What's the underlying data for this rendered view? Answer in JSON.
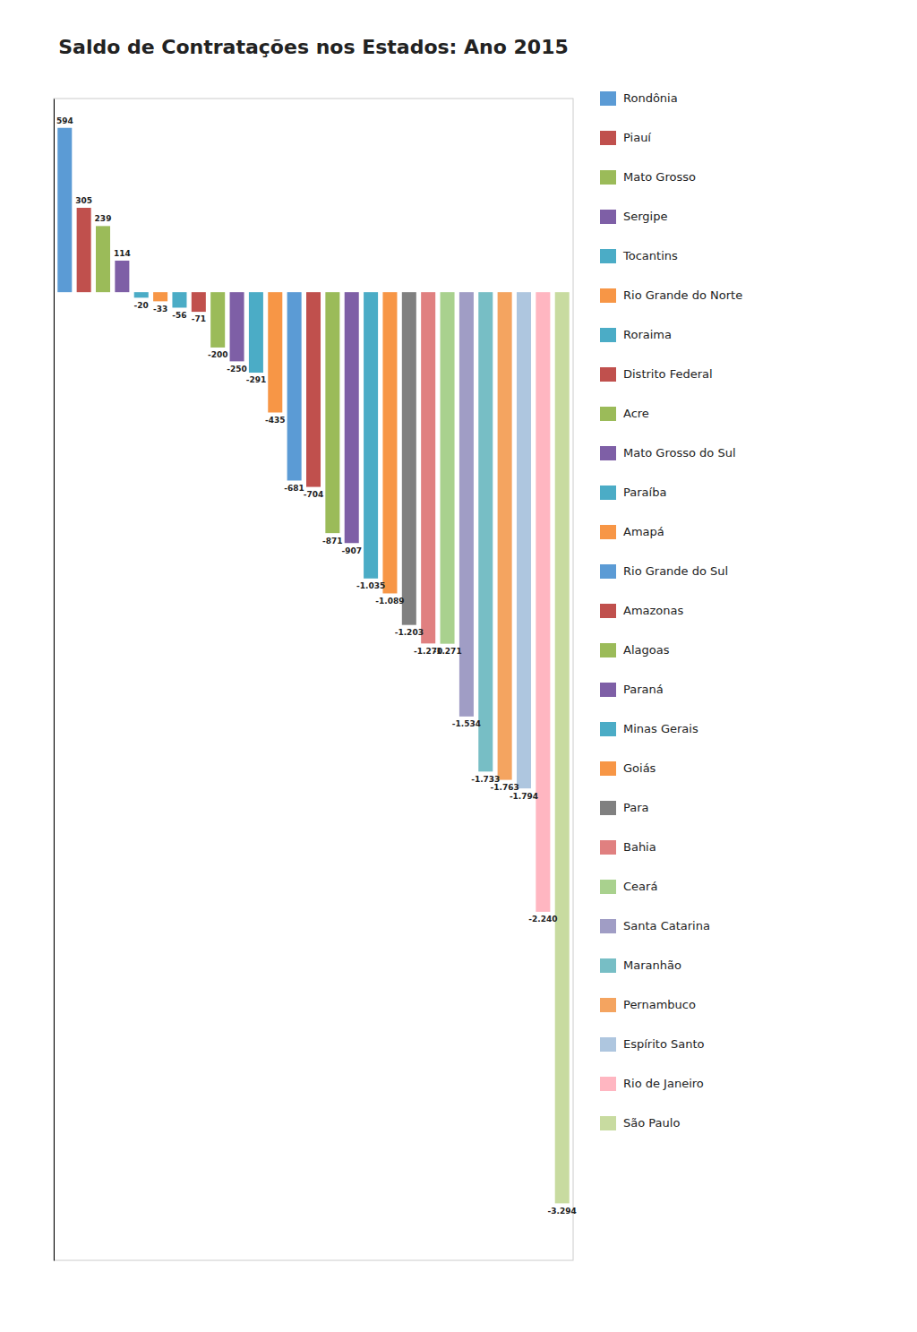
{
  "chart_data": {
    "type": "bar",
    "title": "Saldo de Contratações nos Estados: Ano 2015",
    "categories": [
      "Rondônia",
      "Piauí",
      "Mato Grosso",
      "Sergipe",
      "Tocantins",
      "Rio Grande do Norte",
      "Roraima",
      "Distrito Federal",
      "Acre",
      "Mato Grosso do Sul",
      "Paraíba",
      "Amapá",
      "Rio Grande do Sul",
      "Amazonas",
      "Alagoas",
      "Paraná",
      "Minas Gerais",
      "Goiás",
      "Para",
      "Bahia",
      "Ceará",
      "Santa Catarina",
      "Maranhão",
      "Pernambuco",
      "Espírito Santo",
      "Rio de Janeiro",
      "São Paulo"
    ],
    "values": [
      594,
      305,
      239,
      114,
      -20,
      -33,
      -56,
      -71,
      -200,
      -250,
      -291,
      -435,
      -681,
      -704,
      -871,
      -907,
      -1035,
      -1089,
      -1203,
      -1270,
      -1271,
      -1534,
      -1733,
      -1763,
      -1794,
      -2240,
      -3294
    ],
    "value_labels": [
      "594",
      "305",
      "239",
      "114",
      "-20",
      "-33",
      "-56",
      "-71",
      "-200",
      "-250",
      "-291",
      "-435",
      "-681",
      "-704",
      "-871",
      "-907",
      "-1.035",
      "-1.089",
      "-1.203",
      "-1.270",
      "-1.271",
      "-1.534",
      "-1.733",
      "-1.763",
      "-1.794",
      "-2.240",
      "-3.294"
    ],
    "colors": [
      "#5b9bd5",
      "#c0504d",
      "#9bbb59",
      "#7e5fa6",
      "#4bacc6",
      "#f79646",
      "#4bacc6",
      "#c0504d",
      "#9bbb59",
      "#7e5fa6",
      "#4bacc6",
      "#f79646",
      "#5b9bd5",
      "#c0504d",
      "#9bbb59",
      "#7e5fa6",
      "#4bacc6",
      "#f79646",
      "#808080",
      "#e08080",
      "#a9d18e",
      "#a09dc5",
      "#77bec5",
      "#f4a460",
      "#aec6df",
      "#ffb6c1",
      "#c8dba0"
    ],
    "ylim": [
      -3500,
      700
    ],
    "yticks": [],
    "grid": false,
    "tick_labels": false,
    "data_labels": true,
    "legend": "right"
  }
}
